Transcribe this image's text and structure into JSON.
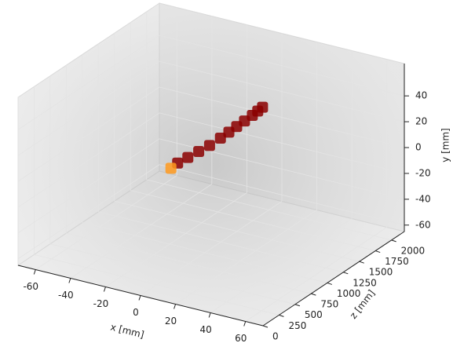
{
  "chart_data": {
    "type": "scatter3d",
    "xlabel": "x [mm]",
    "ylabel": "y [mm]",
    "zlabel": "z [mm]",
    "xlim": [
      -70,
      70
    ],
    "ylim": [
      -65,
      65
    ],
    "zlim": [
      0,
      2200
    ],
    "xticks": [
      -60,
      -40,
      -20,
      0,
      20,
      40,
      60
    ],
    "yticks": [
      -60,
      -40,
      -20,
      0,
      20,
      40
    ],
    "zticks": [
      0,
      250,
      500,
      750,
      1000,
      1250,
      1500,
      1750,
      2000
    ],
    "grid": true,
    "series": [
      {
        "color": "#8b0000",
        "x": [
          -10,
          -6,
          -2,
          2,
          6,
          9,
          12,
          15,
          18,
          20,
          22
        ],
        "z": [
          850,
          900,
          960,
          1020,
          1080,
          1130,
          1170,
          1210,
          1250,
          1280,
          1300
        ],
        "y": [
          6,
          10,
          14,
          18,
          23,
          27,
          31,
          35,
          39,
          42,
          45
        ]
      },
      {
        "color": "#ff9a1f",
        "x": [
          -12
        ],
        "z": [
          800
        ],
        "y": [
          3
        ]
      }
    ]
  }
}
